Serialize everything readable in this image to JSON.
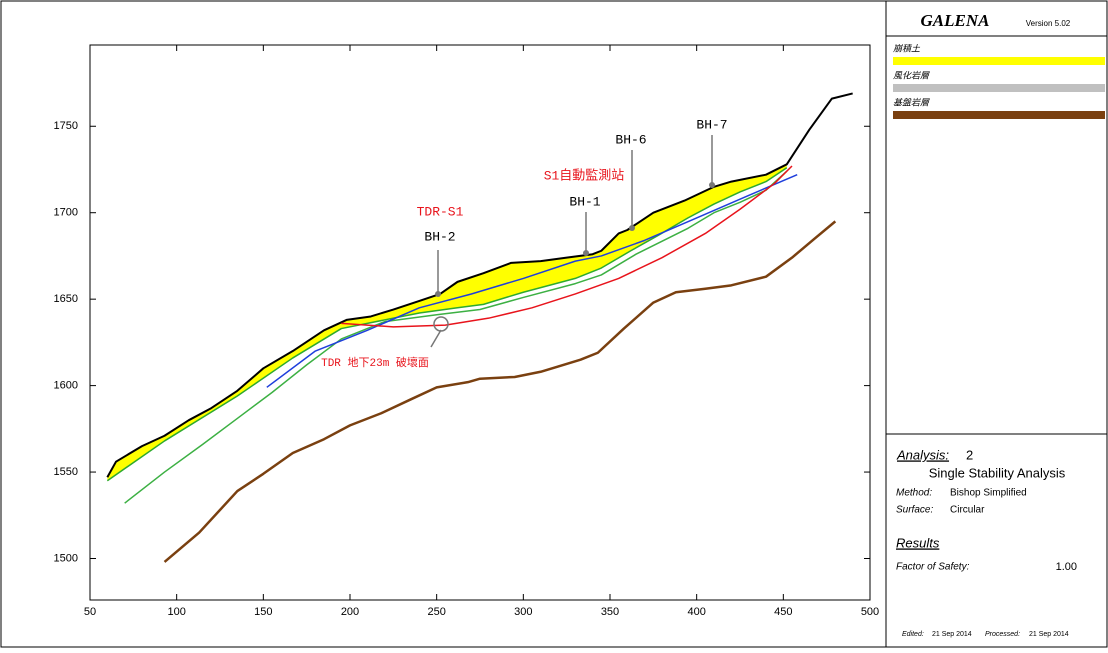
{
  "chart_data": {
    "type": "line",
    "xlim": [
      50,
      500
    ],
    "xticks": [
      50,
      100,
      150,
      200,
      250,
      300,
      350,
      400,
      450,
      500
    ],
    "ylim": [
      1476,
      1797
    ],
    "yticks": [
      1500,
      1550,
      1600,
      1650,
      1700,
      1750
    ],
    "series": [
      {
        "color": "#000000",
        "x": [
          60,
          65,
          80,
          93,
          107,
          120,
          135,
          150,
          167,
          185,
          198,
          212,
          225,
          240,
          252,
          262,
          277,
          293,
          310,
          325,
          340,
          345,
          355,
          360,
          375,
          393,
          410,
          420,
          440,
          452,
          465,
          478,
          490
        ],
        "values": [
          1547,
          1556,
          1565,
          1571,
          1580,
          1587,
          1597,
          1610,
          1620,
          1632,
          1638,
          1640,
          1644,
          1649,
          1653,
          1660,
          1665,
          1671,
          1672,
          1674,
          1676,
          1678,
          1688,
          1690,
          1700,
          1707,
          1715,
          1718,
          1722,
          1728,
          1748,
          1766,
          1769
        ]
      },
      {
        "color": "#2eaa2e",
        "fill": "#ffff00",
        "x": [
          60,
          93,
          135,
          167,
          195,
          240,
          262,
          277,
          300,
          330,
          345,
          362,
          378,
          395,
          410,
          425,
          440,
          452
        ],
        "values": [
          1545,
          1568,
          1594,
          1616,
          1633,
          1642,
          1645,
          1647,
          1654,
          1662,
          1668,
          1678,
          1687,
          1697,
          1705,
          1712,
          1718,
          1726
        ]
      },
      {
        "color": "#3cb043",
        "x": [
          70,
          93,
          115,
          135,
          155,
          175,
          195,
          220,
          250,
          275,
          300,
          330,
          345,
          365,
          395,
          410,
          425,
          440,
          452
        ],
        "values": [
          1532,
          1550,
          1566,
          1581,
          1596,
          1612,
          1627,
          1637,
          1641,
          1644,
          1651,
          1659,
          1664,
          1676,
          1691,
          1700,
          1706,
          1713,
          1724
        ]
      },
      {
        "color": "#7a4010",
        "x": [
          93,
          113,
          135,
          150,
          167,
          185,
          200,
          218,
          235,
          250,
          268,
          275,
          295,
          310,
          320,
          333,
          343,
          358,
          375,
          388,
          405,
          420,
          440,
          455,
          468,
          480
        ],
        "values": [
          1498,
          1515,
          1539,
          1549,
          1561,
          1569,
          1577,
          1584,
          1592,
          1599,
          1602,
          1604,
          1605,
          1608,
          1611,
          1615,
          1619,
          1633,
          1648,
          1654,
          1656,
          1658,
          1663,
          1674,
          1685,
          1695
        ]
      },
      {
        "color": "#1f3fdc",
        "x": [
          152,
          180,
          210,
          240,
          270,
          300,
          330,
          345,
          370,
          400,
          430,
          458
        ],
        "values": [
          1599,
          1620,
          1632,
          1645,
          1653,
          1662,
          1672,
          1675,
          1684,
          1697,
          1710,
          1722
        ]
      },
      {
        "color": "#e8141c",
        "x": [
          195,
          225,
          255,
          280,
          305,
          330,
          355,
          380,
          405,
          425,
          445,
          455
        ],
        "values": [
          1636,
          1634,
          1635,
          1639,
          1645,
          1653,
          1662,
          1674,
          1688,
          1702,
          1717,
          1727
        ]
      }
    ],
    "annotations": [
      {
        "text": "TDR-S1",
        "color": "#e8141c"
      },
      {
        "text": "BH-2",
        "color": "#000000"
      },
      {
        "text": "S1自動監測站",
        "color": "#e8141c"
      },
      {
        "text": "BH-1",
        "color": "#000000"
      },
      {
        "text": "BH-6",
        "color": "#000000"
      },
      {
        "text": "BH-7",
        "color": "#000000"
      },
      {
        "text": "TDR 地下23m 破壞面",
        "color": "#e8141c"
      }
    ]
  },
  "panel": {
    "title": "GALENA",
    "version": "Version 5.02",
    "legend": [
      {
        "label": "崩積土",
        "color": "#ffff00"
      },
      {
        "label": "風化岩層",
        "color": "#c0c0c0"
      },
      {
        "label": "基盤岩層",
        "color": "#7a4010"
      }
    ],
    "analysis_label": "Analysis:",
    "analysis_number": "2",
    "analysis_type": "Single Stability Analysis",
    "method_label": "Method:",
    "method": "Bishop Simplified",
    "surface_label": "Surface:",
    "surface": "Circular",
    "results_label": "Results",
    "fos_label": "Factor of Safety:",
    "fos": "1.00",
    "edited_label": "Edited:",
    "edited": "21 Sep 2014",
    "processed_label": "Processed:",
    "processed": "21 Sep 2014"
  }
}
